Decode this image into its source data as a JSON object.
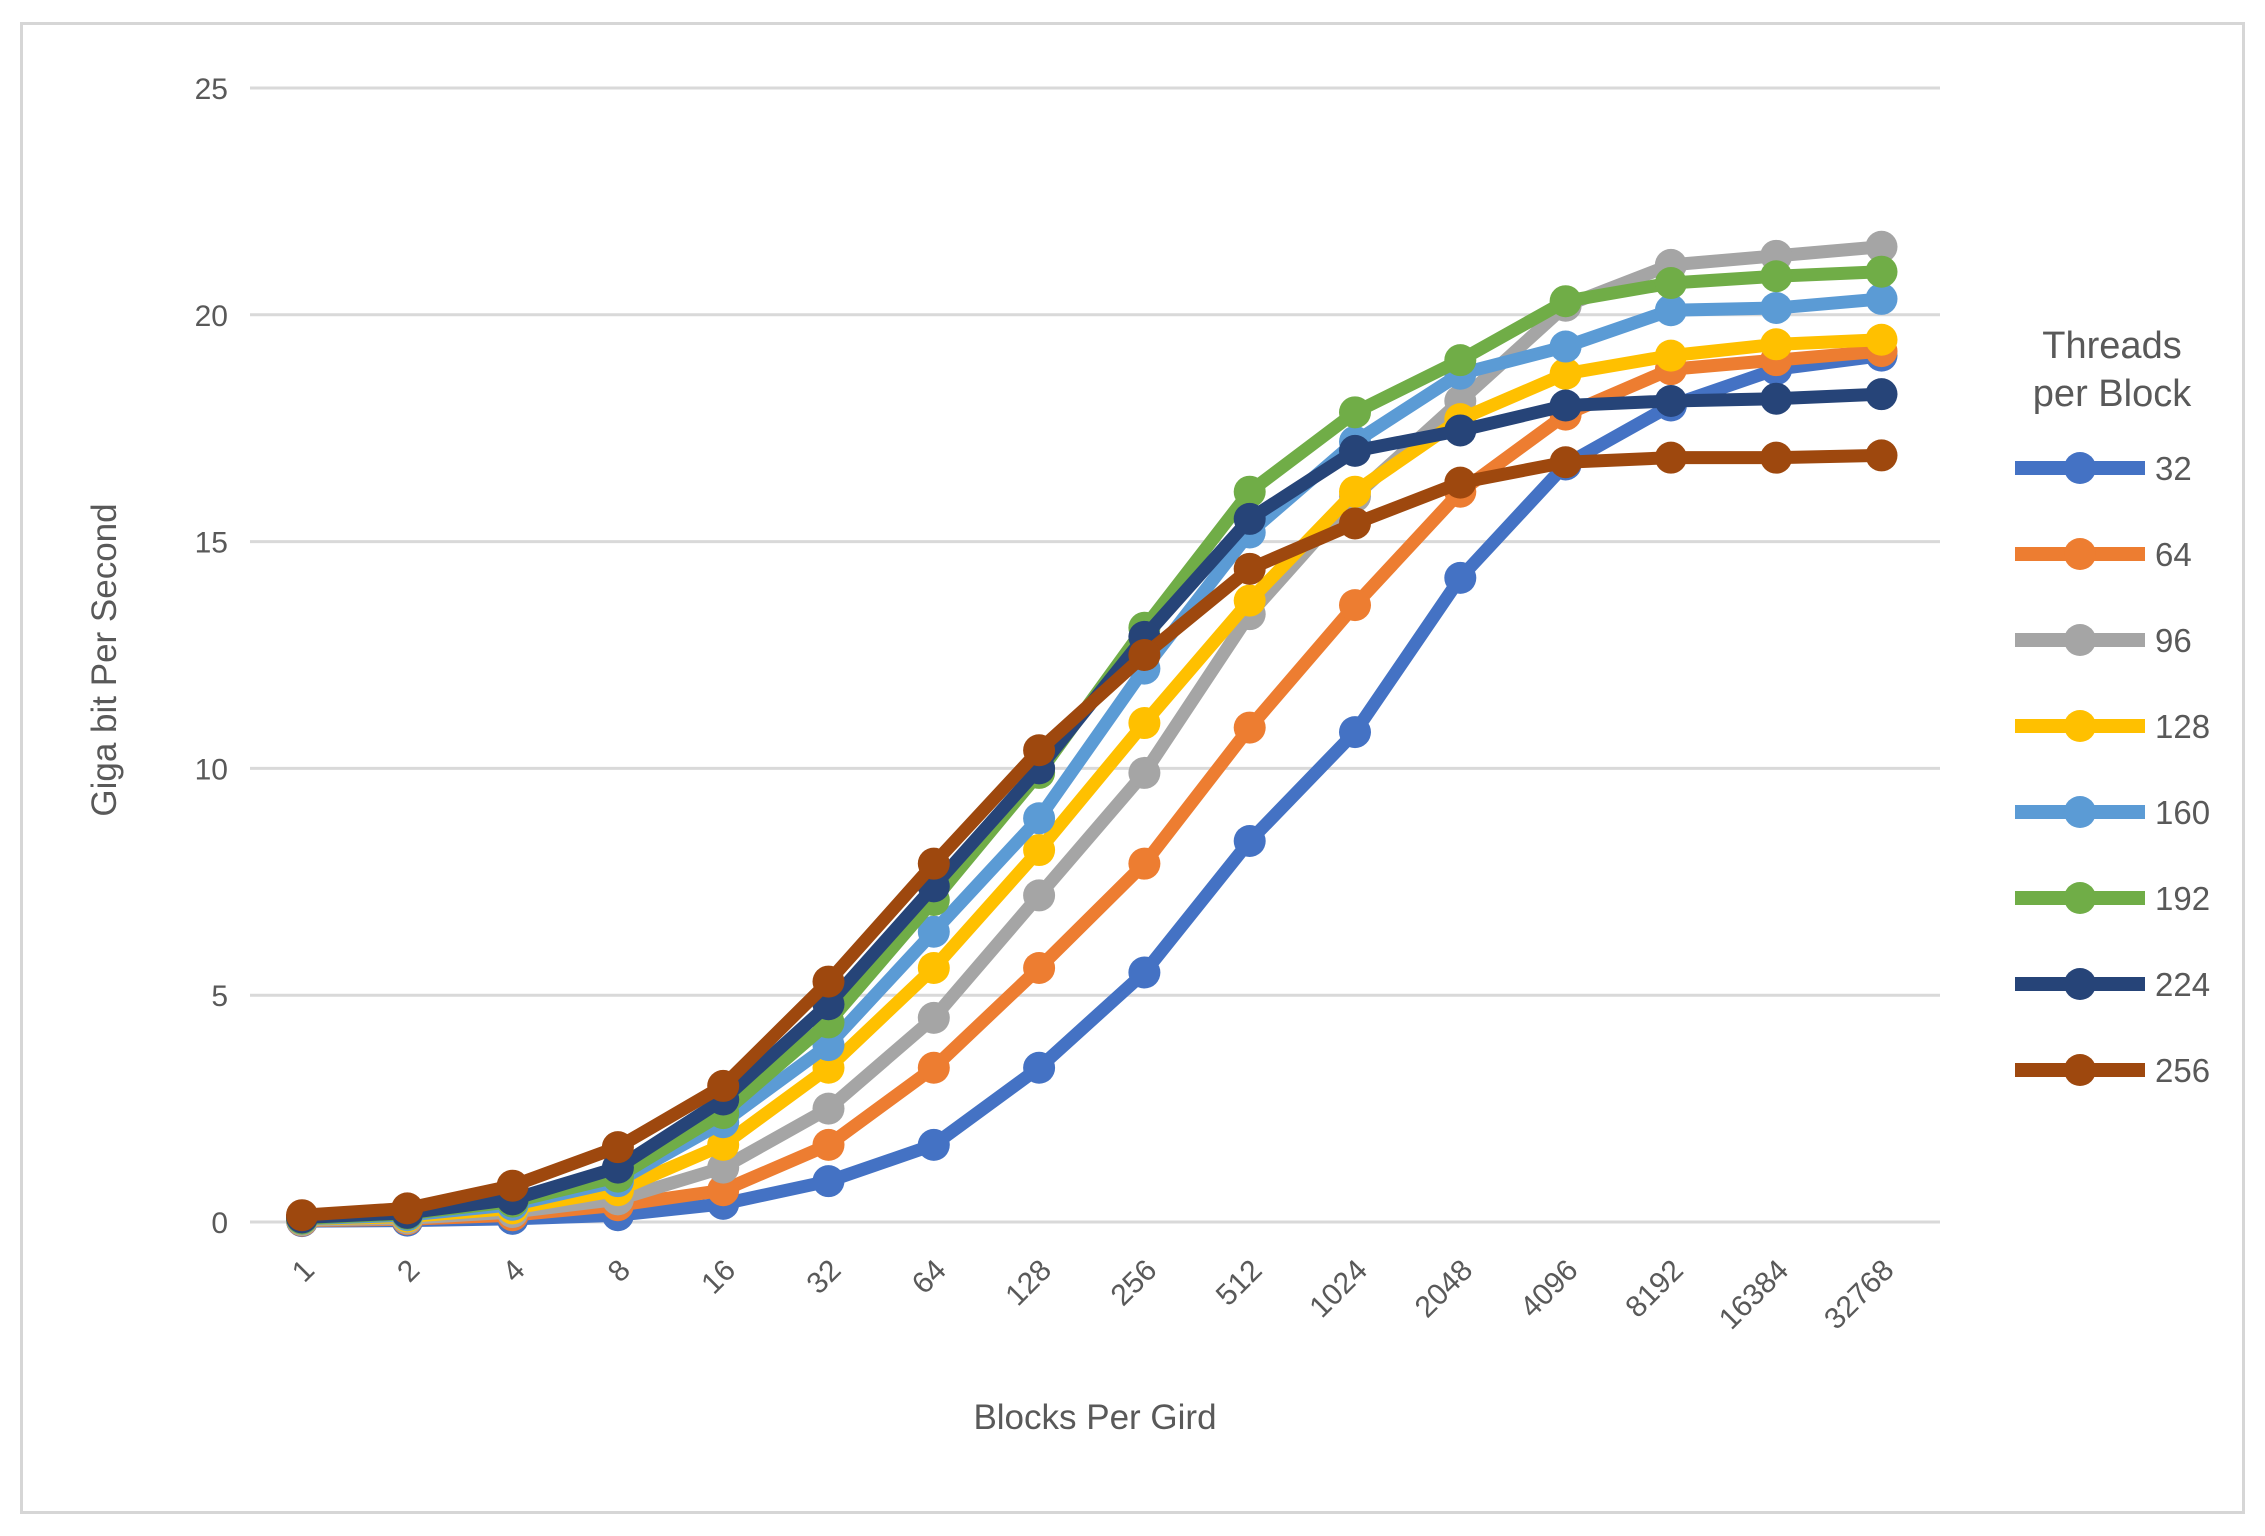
{
  "chart_data": {
    "type": "line",
    "title": "",
    "xlabel": "Blocks Per Gird",
    "ylabel": "Giga bit Per Second",
    "categories": [
      "1",
      "2",
      "4",
      "8",
      "16",
      "32",
      "64",
      "128",
      "256",
      "512",
      "1024",
      "2048",
      "4096",
      "8192",
      "16384",
      "32768"
    ],
    "y_ticks": [
      0,
      5,
      10,
      15,
      20,
      25
    ],
    "ylim": [
      0,
      25
    ],
    "grid": true,
    "legend_position": "right",
    "legend_title_lines": [
      "Threads",
      "per Block"
    ],
    "axis_text_color": "#595959",
    "gridline_color": "#D9D9D9",
    "frame_color": "#D6D6D6",
    "series": [
      {
        "name": "32",
        "color": "#4472C4",
        "values": [
          0.02,
          0.03,
          0.07,
          0.15,
          0.4,
          0.9,
          1.7,
          3.4,
          5.5,
          8.4,
          10.8,
          14.2,
          16.7,
          18.0,
          18.8,
          19.1
        ]
      },
      {
        "name": "64",
        "color": "#ED7D31",
        "values": [
          0.03,
          0.06,
          0.15,
          0.37,
          0.7,
          1.7,
          3.4,
          5.6,
          7.9,
          10.9,
          13.6,
          16.1,
          17.8,
          18.8,
          19.0,
          19.2
        ]
      },
      {
        "name": "96",
        "color": "#A5A5A5",
        "values": [
          0.04,
          0.08,
          0.22,
          0.5,
          1.2,
          2.5,
          4.5,
          7.2,
          9.9,
          13.4,
          16.0,
          18.1,
          20.2,
          21.1,
          21.3,
          21.5
        ]
      },
      {
        "name": "128",
        "color": "#FFC000",
        "values": [
          0.06,
          0.12,
          0.3,
          0.7,
          1.7,
          3.4,
          5.6,
          8.2,
          11.0,
          13.7,
          16.1,
          17.7,
          18.7,
          19.1,
          19.35,
          19.45
        ]
      },
      {
        "name": "160",
        "color": "#5B9BD5",
        "values": [
          0.07,
          0.15,
          0.38,
          0.9,
          2.2,
          3.9,
          6.4,
          8.9,
          12.2,
          15.2,
          17.2,
          18.7,
          19.3,
          20.1,
          20.15,
          20.35
        ]
      },
      {
        "name": "192",
        "color": "#70AD47",
        "values": [
          0.08,
          0.18,
          0.45,
          1.0,
          2.4,
          4.4,
          7.1,
          9.9,
          13.1,
          16.1,
          17.85,
          19.0,
          20.3,
          20.7,
          20.85,
          20.95
        ]
      },
      {
        "name": "224",
        "color": "#264478",
        "values": [
          0.1,
          0.2,
          0.5,
          1.2,
          2.7,
          4.8,
          7.4,
          10.0,
          12.9,
          15.5,
          17.0,
          17.45,
          18.0,
          18.1,
          18.15,
          18.25
        ]
      },
      {
        "name": "256",
        "color": "#9E480E",
        "values": [
          0.15,
          0.3,
          0.8,
          1.65,
          3.0,
          5.3,
          7.9,
          10.4,
          12.5,
          14.4,
          15.4,
          16.3,
          16.75,
          16.85,
          16.85,
          16.9
        ]
      }
    ]
  }
}
